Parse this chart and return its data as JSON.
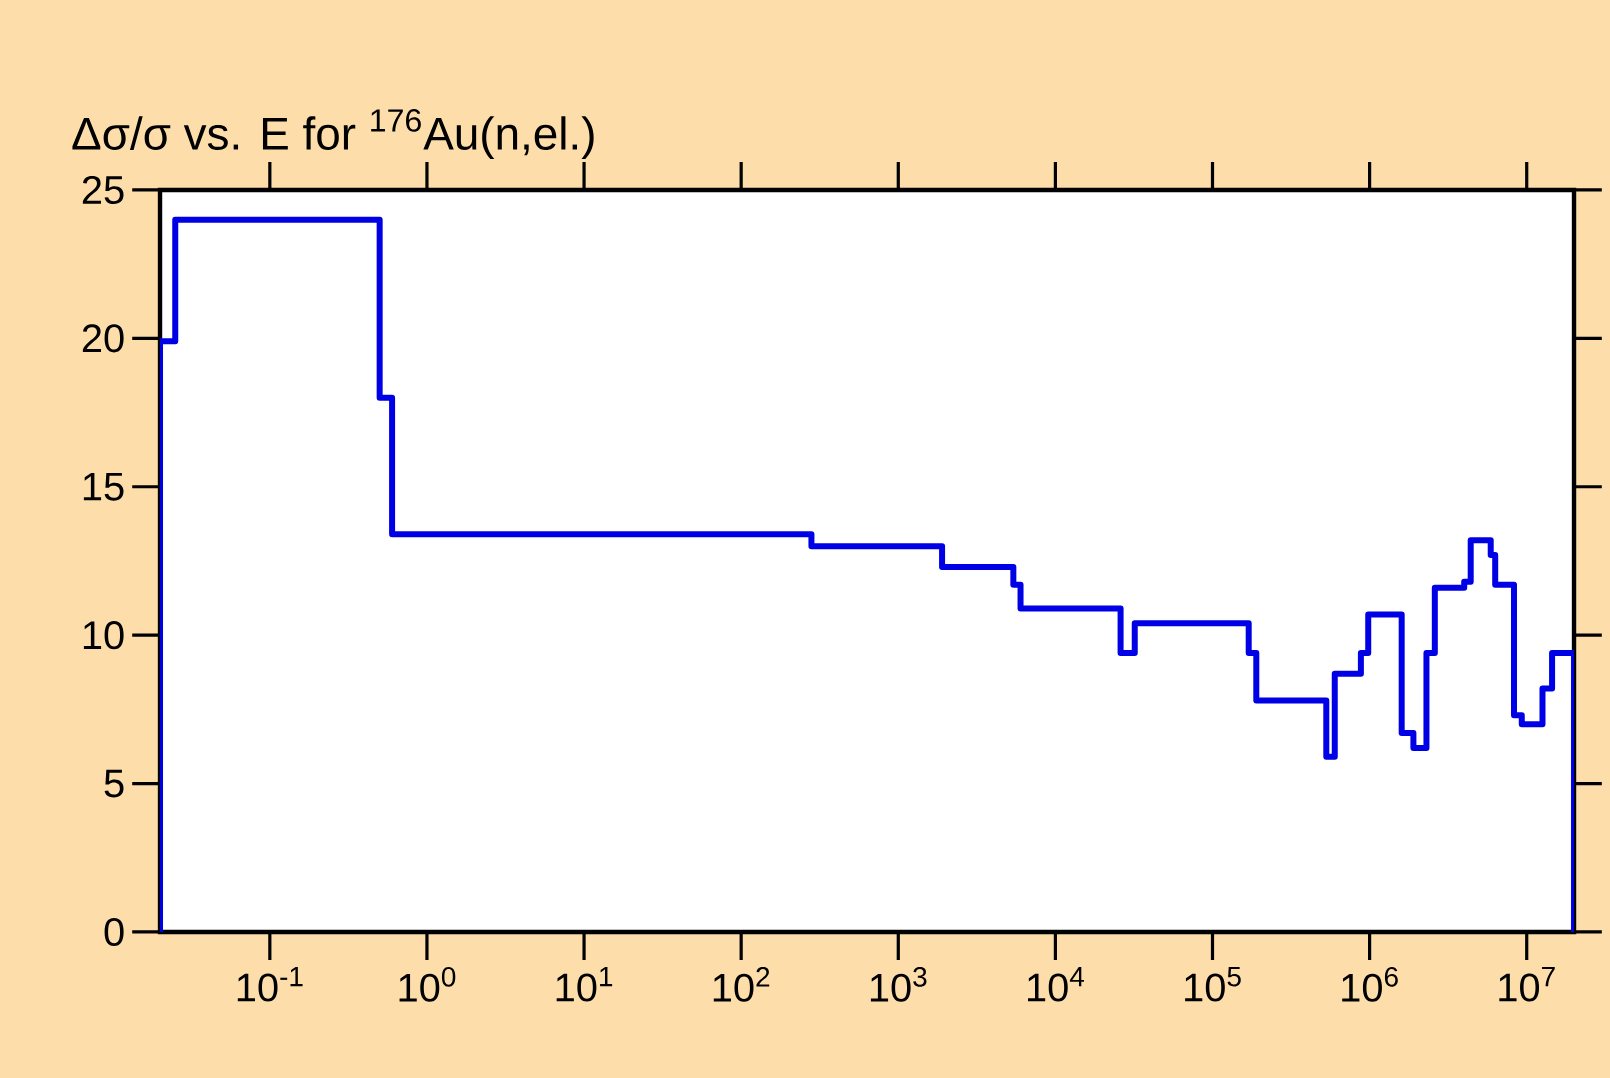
{
  "chart_data": {
    "type": "step",
    "title": "Δσ/σ vs. E for $^{176}$Au(n,el.)",
    "log": "x",
    "x": [
      0.02,
      0.02,
      0.025,
      0.5,
      0.6,
      280,
      1900,
      5400,
      6000,
      26000,
      32000,
      170000,
      190000,
      530000,
      600000,
      880000,
      980000,
      1600000,
      1900000,
      2300000,
      2600000,
      4000000,
      4400000,
      5900000,
      6300000,
      8300000,
      9300000,
      12600000,
      14500000,
      20000000
    ],
    "series": [
      {
        "color": "#0000e6",
        "values": [
          0,
          19.9,
          24,
          18,
          13.4,
          13.0,
          12.3,
          11.7,
          10.9,
          9.4,
          10.4,
          9.4,
          7.8,
          5.9,
          8.7,
          9.4,
          10.7,
          6.7,
          6.2,
          9.4,
          11.6,
          11.8,
          13.2,
          12.7,
          11.7,
          7.3,
          7.0,
          8.2,
          9.4,
          0
        ]
      }
    ],
    "xlim": [
      0.02,
      20000000
    ],
    "ylim": [
      0,
      25
    ],
    "xticks": [
      {
        "value": 0.1,
        "label": "10$^{-1}$"
      },
      {
        "value": 1,
        "label": "10$^{0}$"
      },
      {
        "value": 10,
        "label": "10$^{1}$"
      },
      {
        "value": 100,
        "label": "10$^{2}$"
      },
      {
        "value": 1000,
        "label": "10$^{3}$"
      },
      {
        "value": 10000,
        "label": "10$^{4}$"
      },
      {
        "value": 100000,
        "label": "10$^{5}$"
      },
      {
        "value": 1000000,
        "label": "10$^{6}$"
      },
      {
        "value": 10000000,
        "label": "10$^{7}$"
      }
    ],
    "yticks": [
      0,
      5,
      10,
      15,
      20,
      25
    ]
  }
}
